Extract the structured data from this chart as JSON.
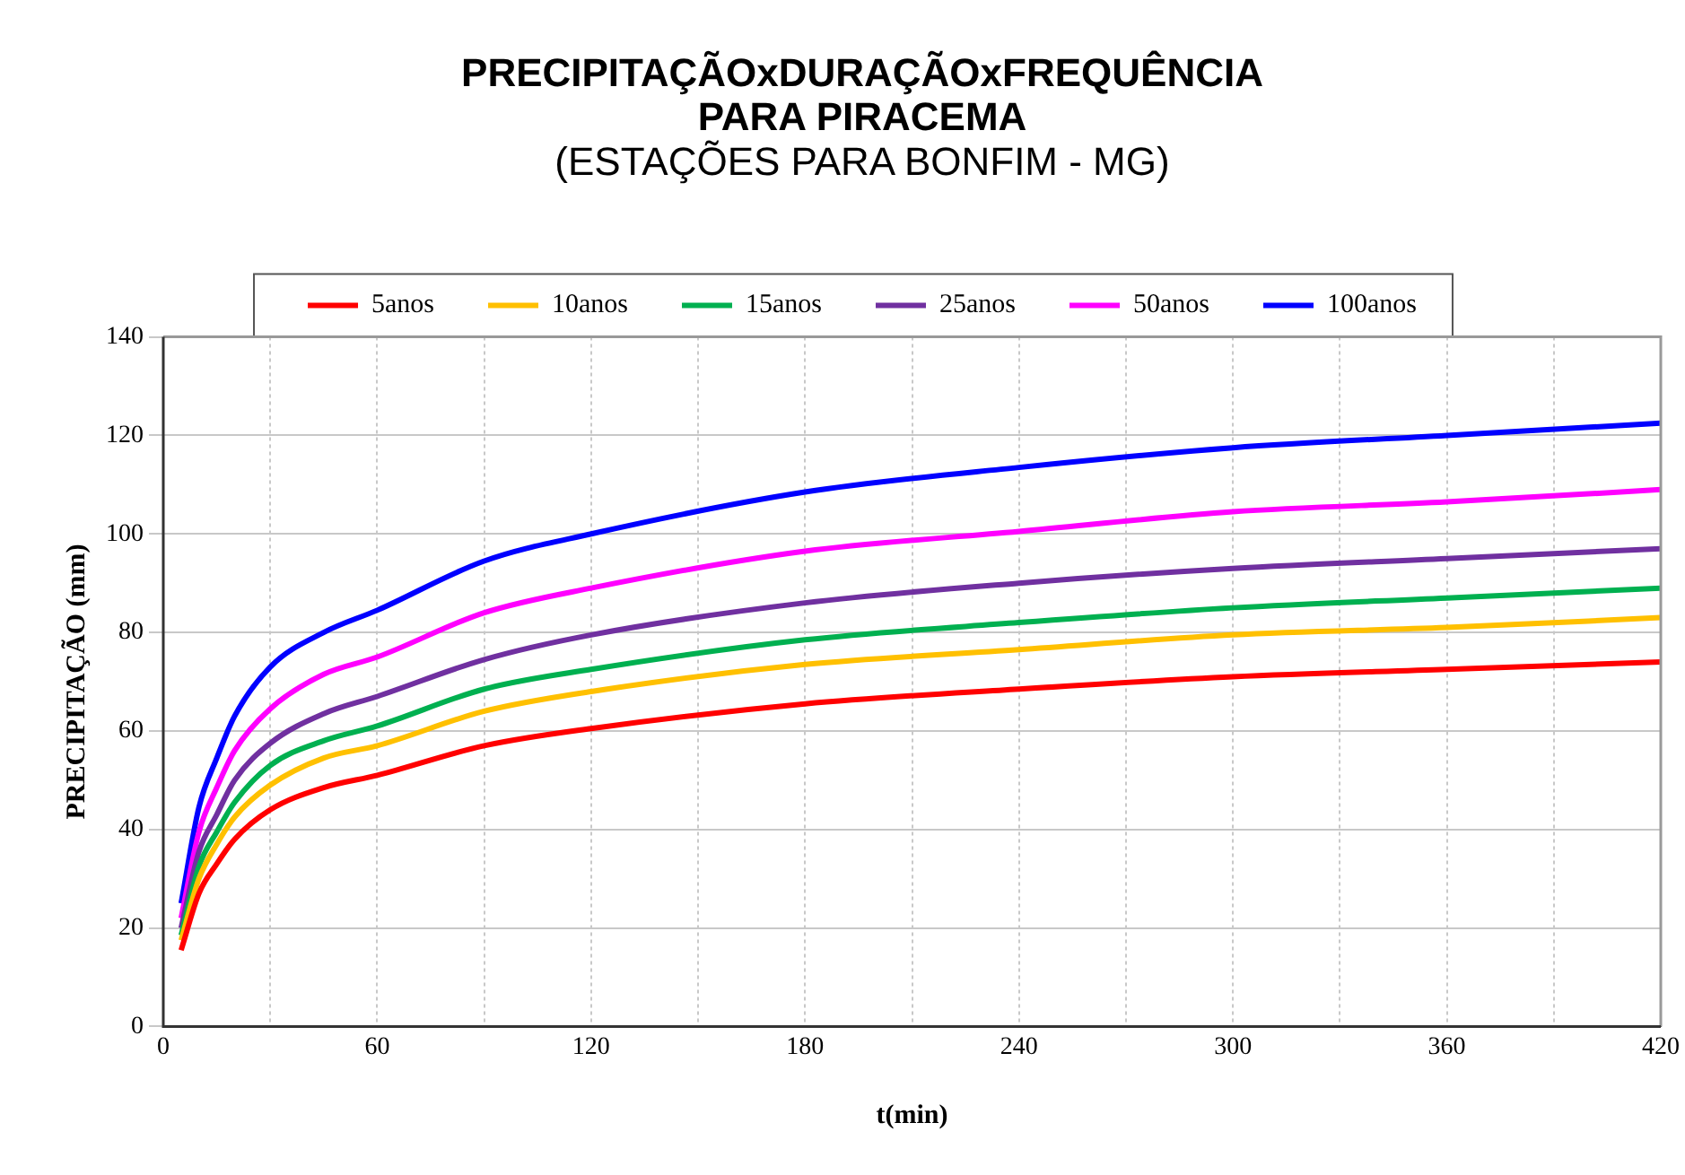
{
  "chart_data": {
    "type": "line",
    "title": "PRECIPITAÇÃOxDURAÇÃOxFREQUÊNCIA\nPARA PIRACEMA",
    "subtitle": "(ESTAÇÕES PARA BONFIM - MG)",
    "xlabel": "t(min)",
    "ylabel": "PRECIPITAÇÃO (mm)",
    "x": [
      5,
      10,
      15,
      20,
      30,
      45,
      60,
      90,
      120,
      180,
      240,
      300,
      360,
      420
    ],
    "series": [
      {
        "name": "5anos",
        "color": "#ff0000",
        "values": [
          15.5,
          27,
          33,
          38,
          44,
          48.5,
          51,
          57,
          60.5,
          65.5,
          68.5,
          71,
          72.5,
          74
        ]
      },
      {
        "name": "10anos",
        "color": "#ffc000",
        "values": [
          17.5,
          30,
          37,
          42.5,
          49,
          54.5,
          57,
          64,
          68,
          73.5,
          76.5,
          79.5,
          81,
          83
        ]
      },
      {
        "name": "15anos",
        "color": "#00b050",
        "values": [
          18.5,
          32.5,
          39.5,
          45.5,
          53,
          58,
          61,
          68.5,
          72.5,
          78.5,
          82,
          85,
          87,
          89
        ]
      },
      {
        "name": "25anos",
        "color": "#7030a0",
        "values": [
          20,
          35.5,
          43,
          50,
          57.5,
          63.5,
          67,
          74.5,
          79.5,
          86,
          90,
          93,
          95,
          97
        ]
      },
      {
        "name": "50anos",
        "color": "#ff00ff",
        "values": [
          22,
          39.5,
          48.5,
          56,
          64.5,
          71.5,
          75,
          84,
          89,
          96.5,
          100.5,
          104.5,
          106.5,
          109
        ]
      },
      {
        "name": "100anos",
        "color": "#0000ff",
        "values": [
          25,
          44.5,
          54.5,
          63,
          73,
          80,
          84.5,
          94.5,
          100,
          108.5,
          113.5,
          117.5,
          120,
          122.5
        ]
      }
    ],
    "xlim": [
      0,
      420
    ],
    "xticks": [
      0,
      {
        "value": 30,
        "label": null
      },
      60,
      {
        "value": 90,
        "label": null
      },
      120,
      {
        "value": 150,
        "label": null
      },
      180,
      {
        "value": 210,
        "label": null
      },
      240,
      {
        "value": 270,
        "label": null
      },
      300,
      {
        "value": 330,
        "label": null
      },
      360,
      {
        "value": 390,
        "label": null
      },
      420
    ],
    "ylim": [
      0,
      140
    ],
    "yticks": [
      0,
      20,
      40,
      60,
      80,
      100,
      120,
      140
    ],
    "grid": true,
    "legend": "top",
    "marker": "none",
    "line_style": "solid"
  }
}
